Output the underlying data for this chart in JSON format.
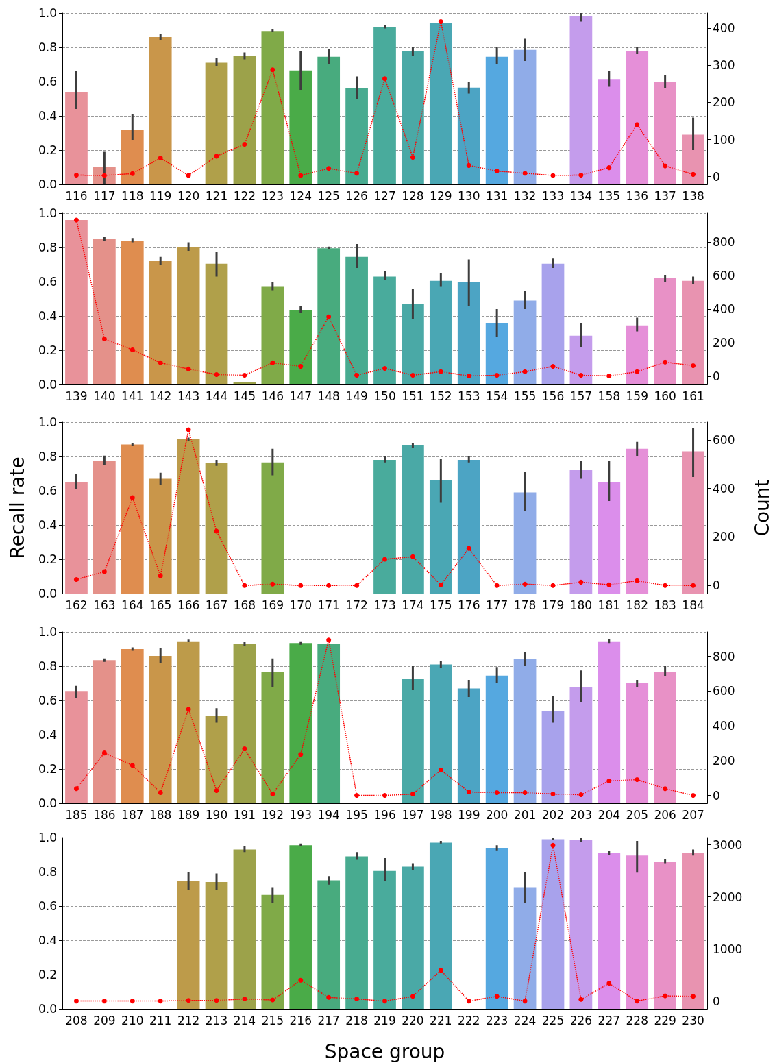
{
  "chart_data": [
    {
      "type": "bar",
      "categories": [
        "116",
        "117",
        "118",
        "119",
        "120",
        "121",
        "122",
        "123",
        "124",
        "125",
        "126",
        "127",
        "128",
        "129",
        "130",
        "131",
        "132",
        "133",
        "134",
        "135",
        "136",
        "137",
        "138"
      ],
      "ylim": [
        0,
        1
      ],
      "yticks": [
        {
          "value": 0,
          "label": "0.0"
        },
        {
          "value": 0.2,
          "label": "0.2"
        },
        {
          "value": 0.4,
          "label": "0.4"
        },
        {
          "value": 0.6,
          "label": "0.6"
        },
        {
          "value": 0.8,
          "label": "0.8"
        },
        {
          "value": 1,
          "label": "1.0"
        }
      ],
      "y2lim": [
        -21,
        441
      ],
      "y2ticks": [
        0,
        100,
        200,
        300,
        400
      ],
      "grid": "y",
      "marker": "circle",
      "line_style": "dotted",
      "series": [
        {
          "colors": [
            "#e8929a",
            "#e4918a",
            "#df8d4f",
            "#c9964a",
            null,
            "#b0a04a",
            "#9ca24a",
            "#80aa48",
            "#4aab48",
            "#48ab7e",
            "#48ab90",
            "#49ab9c",
            "#4aa9a6",
            "#4aa7b4",
            "#4ca4c4",
            "#55a8e0",
            "#90ace8",
            null,
            "#c49cec",
            "#db8eeb",
            "#e58fd8",
            "#e891c6",
            "#e893b0"
          ],
          "values": [
            0.54,
            0.1,
            0.32,
            0.86,
            null,
            0.71,
            0.75,
            0.895,
            0.665,
            0.745,
            0.56,
            0.92,
            0.78,
            0.94,
            0.565,
            0.745,
            0.785,
            null,
            0.98,
            0.615,
            0.78,
            0.6,
            0.29
          ],
          "errors": [
            [
              0.44,
              0.66
            ],
            [
              0,
              0.19
            ],
            [
              0.26,
              0.41
            ],
            [
              0.84,
              0.88
            ],
            null,
            [
              0.69,
              0.74
            ],
            [
              0.73,
              0.77
            ],
            [
              0.89,
              0.905
            ],
            [
              0.55,
              0.78
            ],
            [
              0.7,
              0.79
            ],
            [
              0.5,
              0.63
            ],
            [
              0.91,
              0.93
            ],
            [
              0.75,
              0.8
            ],
            null,
            [
              0.53,
              0.6
            ],
            [
              0.7,
              0.8
            ],
            [
              0.72,
              0.85
            ],
            null,
            [
              0.95,
              1
            ],
            [
              0.57,
              0.66
            ],
            [
              0.76,
              0.8
            ],
            [
              0.56,
              0.64
            ],
            [
              0.2,
              0.39
            ]
          ]
        },
        {
          "type": "line",
          "axis": "y2",
          "color": "#ff0000",
          "values": [
            4,
            3,
            8,
            50,
            3,
            55,
            87,
            288,
            3,
            22,
            9,
            264,
            52,
            418,
            30,
            15,
            9,
            3,
            4,
            24,
            140,
            29,
            6
          ]
        }
      ]
    },
    {
      "type": "bar",
      "categories": [
        "139",
        "140",
        "141",
        "142",
        "143",
        "144",
        "145",
        "146",
        "147",
        "148",
        "149",
        "150",
        "151",
        "152",
        "153",
        "154",
        "155",
        "156",
        "157",
        "158",
        "159",
        "160",
        "161"
      ],
      "ylim": [
        0,
        1
      ],
      "yticks": [
        {
          "value": 0,
          "label": "0.0"
        },
        {
          "value": 0.2,
          "label": "0.2"
        },
        {
          "value": 0.4,
          "label": "0.4"
        },
        {
          "value": 0.6,
          "label": "0.6"
        },
        {
          "value": 0.8,
          "label": "0.8"
        },
        {
          "value": 1,
          "label": "1.0"
        }
      ],
      "y2lim": [
        -47,
        971
      ],
      "y2ticks": [
        0,
        200,
        400,
        600,
        800
      ],
      "grid": "y",
      "marker": "circle",
      "line_style": "dotted",
      "series": [
        {
          "colors": [
            "#e8929a",
            "#e4918a",
            "#df8d4f",
            "#c9964a",
            "#bd9b4a",
            "#b0a04a",
            "#9ca24a",
            "#80aa48",
            "#4aab48",
            "#48ab7e",
            "#48ab90",
            "#49ab9c",
            "#4aa9a6",
            "#4aa7b4",
            "#4ca4c4",
            "#55a8e0",
            "#90ace8",
            "#a8a2ec",
            "#c49cec",
            null,
            "#e58fd8",
            "#e891c6",
            "#e893b0"
          ],
          "values": [
            0.96,
            0.85,
            0.84,
            0.72,
            0.8,
            0.705,
            0.015,
            0.57,
            0.435,
            0.795,
            0.745,
            0.63,
            0.47,
            0.605,
            0.6,
            0.36,
            0.49,
            0.705,
            0.285,
            null,
            0.345,
            0.62,
            0.605
          ],
          "errors": [
            null,
            [
              0.84,
              0.86
            ],
            [
              0.83,
              0.855
            ],
            [
              0.7,
              0.745
            ],
            [
              0.78,
              0.83
            ],
            [
              0.63,
              0.775
            ],
            null,
            [
              0.55,
              0.6
            ],
            [
              0.42,
              0.46
            ],
            [
              0.79,
              0.805
            ],
            [
              0.68,
              0.82
            ],
            [
              0.61,
              0.66
            ],
            [
              0.38,
              0.56
            ],
            [
              0.57,
              0.65
            ],
            [
              0.46,
              0.73
            ],
            [
              0.28,
              0.44
            ],
            [
              0.44,
              0.545
            ],
            [
              0.68,
              0.735
            ],
            [
              0.22,
              0.36
            ],
            null,
            [
              0.31,
              0.39
            ],
            [
              0.6,
              0.64
            ],
            [
              0.585,
              0.63
            ]
          ]
        },
        {
          "type": "line",
          "axis": "y2",
          "color": "#ff0000",
          "values": [
            930,
            224,
            159,
            82,
            45,
            12,
            8,
            82,
            61,
            355,
            8,
            49,
            8,
            29,
            4,
            8,
            29,
            61,
            8,
            4,
            29,
            86,
            65
          ]
        }
      ]
    },
    {
      "type": "bar",
      "categories": [
        "162",
        "163",
        "164",
        "165",
        "166",
        "167",
        "168",
        "169",
        "170",
        "171",
        "172",
        "173",
        "174",
        "175",
        "176",
        "177",
        "178",
        "179",
        "180",
        "181",
        "182",
        "183",
        "184"
      ],
      "ylabel": "Recall rate",
      "y2label": "Count",
      "ylim": [
        0,
        1
      ],
      "yticks": [
        {
          "value": 0,
          "label": "0.0"
        },
        {
          "value": 0.2,
          "label": "0.2"
        },
        {
          "value": 0.4,
          "label": "0.4"
        },
        {
          "value": 0.6,
          "label": "0.6"
        },
        {
          "value": 0.8,
          "label": "0.8"
        },
        {
          "value": 1,
          "label": "1.0"
        }
      ],
      "y2lim": [
        -33,
        673
      ],
      "y2ticks": [
        0,
        200,
        400,
        600
      ],
      "grid": "y",
      "marker": "circle",
      "line_style": "dotted",
      "series": [
        {
          "colors": [
            "#e8929a",
            "#e4918a",
            "#df8d4f",
            "#c9964a",
            "#bd9b4a",
            "#b0a04a",
            null,
            "#80aa48",
            null,
            null,
            null,
            "#49ab9c",
            "#4aa9a6",
            "#4aa7b4",
            "#4ca4c4",
            null,
            "#90ace8",
            null,
            "#c49cec",
            "#db8eeb",
            "#e58fd8",
            null,
            "#e893b0"
          ],
          "values": [
            0.65,
            0.775,
            0.87,
            0.67,
            0.9,
            0.76,
            null,
            0.765,
            null,
            null,
            null,
            0.78,
            0.865,
            0.66,
            0.78,
            null,
            0.59,
            null,
            0.72,
            0.65,
            0.845,
            null,
            0.83
          ],
          "errors": [
            [
              0.61,
              0.7
            ],
            [
              0.75,
              0.805
            ],
            [
              0.86,
              0.88
            ],
            [
              0.635,
              0.705
            ],
            [
              0.89,
              0.91
            ],
            [
              0.745,
              0.78
            ],
            null,
            [
              0.69,
              0.845
            ],
            null,
            null,
            null,
            [
              0.765,
              0.8
            ],
            [
              0.85,
              0.88
            ],
            [
              0.53,
              0.785
            ],
            [
              0.765,
              0.8
            ],
            null,
            [
              0.48,
              0.71
            ],
            null,
            [
              0.67,
              0.775
            ],
            [
              0.54,
              0.775
            ],
            [
              0.8,
              0.885
            ],
            null,
            [
              0.68,
              0.965
            ]
          ]
        },
        {
          "type": "line",
          "axis": "y2",
          "color": "#ff0000",
          "values": [
            25,
            57,
            362,
            40,
            642,
            224,
            0,
            6,
            0,
            0,
            0,
            108,
            119,
            3,
            153,
            0,
            6,
            0,
            14,
            3,
            20,
            0,
            0
          ]
        }
      ]
    },
    {
      "type": "bar",
      "categories": [
        "185",
        "186",
        "187",
        "188",
        "189",
        "190",
        "191",
        "192",
        "193",
        "194",
        "195",
        "196",
        "197",
        "198",
        "199",
        "200",
        "201",
        "202",
        "203",
        "204",
        "205",
        "206",
        "207"
      ],
      "ylim": [
        0,
        1
      ],
      "yticks": [
        {
          "value": 0,
          "label": "0.0"
        },
        {
          "value": 0.2,
          "label": "0.2"
        },
        {
          "value": 0.4,
          "label": "0.4"
        },
        {
          "value": 0.6,
          "label": "0.6"
        },
        {
          "value": 0.8,
          "label": "0.8"
        },
        {
          "value": 1,
          "label": "1.0"
        }
      ],
      "y2lim": [
        -45,
        940
      ],
      "y2ticks": [
        0,
        200,
        400,
        600,
        800
      ],
      "grid": "y",
      "marker": "circle",
      "line_style": "dotted",
      "series": [
        {
          "colors": [
            "#e8929a",
            "#e4918a",
            "#df8d4f",
            "#c9964a",
            "#bd9b4a",
            "#b0a04a",
            "#9ca24a",
            "#80aa48",
            "#4aab48",
            "#48ab7e",
            null,
            null,
            "#4aa9a6",
            "#4aa7b4",
            "#4ca4c4",
            "#55a8e0",
            "#90ace8",
            "#a8a2ec",
            "#c49cec",
            "#db8eeb",
            "#e58fd8",
            "#e891c6",
            null
          ],
          "values": [
            0.655,
            0.835,
            0.9,
            0.86,
            0.945,
            0.51,
            0.93,
            0.765,
            0.935,
            0.93,
            null,
            null,
            0.725,
            0.81,
            0.67,
            0.745,
            0.84,
            0.54,
            0.68,
            0.945,
            0.7,
            0.765,
            null
          ],
          "errors": [
            [
              0.615,
              0.685
            ],
            [
              0.825,
              0.845
            ],
            [
              0.89,
              0.91
            ],
            [
              0.82,
              0.905
            ],
            [
              0.94,
              0.955
            ],
            [
              0.47,
              0.555
            ],
            [
              0.92,
              0.94
            ],
            [
              0.68,
              0.845
            ],
            [
              0.925,
              0.945
            ],
            null,
            null,
            null,
            [
              0.66,
              0.8
            ],
            [
              0.79,
              0.83
            ],
            [
              0.62,
              0.72
            ],
            [
              0.7,
              0.795
            ],
            [
              0.8,
              0.88
            ],
            [
              0.47,
              0.625
            ],
            [
              0.59,
              0.775
            ],
            [
              0.935,
              0.96
            ],
            [
              0.68,
              0.72
            ],
            [
              0.74,
              0.8
            ],
            null
          ]
        },
        {
          "type": "line",
          "axis": "y2",
          "color": "#ff0000",
          "values": [
            39,
            244,
            173,
            16,
            496,
            28,
            268,
            8,
            236,
            894,
            0,
            0,
            8,
            146,
            20,
            16,
            16,
            8,
            4,
            83,
            91,
            39,
            0
          ]
        }
      ]
    },
    {
      "type": "bar",
      "categories": [
        "208",
        "209",
        "210",
        "211",
        "212",
        "213",
        "214",
        "215",
        "216",
        "217",
        "218",
        "219",
        "220",
        "221",
        "222",
        "223",
        "224",
        "225",
        "226",
        "227",
        "228",
        "229",
        "230"
      ],
      "xlabel": "Space group",
      "ylim": [
        0,
        1
      ],
      "yticks": [
        {
          "value": 0,
          "label": "0.0"
        },
        {
          "value": 0.2,
          "label": "0.2"
        },
        {
          "value": 0.4,
          "label": "0.4"
        },
        {
          "value": 0.6,
          "label": "0.6"
        },
        {
          "value": 0.8,
          "label": "0.8"
        },
        {
          "value": 1,
          "label": "1.0"
        }
      ],
      "y2lim": [
        -150,
        3140
      ],
      "y2ticks": [
        0,
        1000,
        2000,
        3000
      ],
      "grid": "y",
      "marker": "circle",
      "line_style": "dotted",
      "series": [
        {
          "colors": [
            null,
            null,
            null,
            null,
            "#bd9b4a",
            "#b0a04a",
            "#9ca24a",
            "#80aa48",
            "#4aab48",
            "#48ab7e",
            "#48ab90",
            "#49ab9c",
            "#4aa9a6",
            "#4aa7b4",
            null,
            "#55a8e0",
            "#90ace8",
            "#a8a2ec",
            "#c49cec",
            "#db8eeb",
            "#e58fd8",
            "#e891c6",
            "#e893b0"
          ],
          "values": [
            null,
            null,
            null,
            null,
            0.745,
            0.74,
            0.93,
            0.665,
            0.955,
            0.75,
            0.89,
            0.805,
            0.83,
            0.97,
            null,
            0.94,
            0.71,
            0.99,
            0.985,
            0.91,
            0.895,
            0.86,
            0.91
          ],
          "errors": [
            null,
            null,
            null,
            null,
            [
              0.695,
              0.8
            ],
            [
              0.695,
              0.79
            ],
            [
              0.915,
              0.95
            ],
            [
              0.62,
              0.71
            ],
            [
              0.95,
              0.965
            ],
            [
              0.725,
              0.775
            ],
            [
              0.87,
              0.915
            ],
            [
              0.745,
              0.88
            ],
            [
              0.81,
              0.85
            ],
            [
              0.965,
              0.98
            ],
            null,
            [
              0.925,
              0.955
            ],
            [
              0.62,
              0.8
            ],
            [
              0.985,
              1
            ],
            [
              0.975,
              1
            ],
            [
              0.9,
              0.92
            ],
            [
              0.795,
              0.98
            ],
            [
              0.85,
              0.875
            ],
            [
              0.895,
              0.93
            ]
          ]
        },
        {
          "type": "line",
          "axis": "y2",
          "color": "#ff0000",
          "values": [
            0,
            0,
            0,
            0,
            10,
            10,
            40,
            20,
            400,
            70,
            40,
            0,
            90,
            590,
            0,
            90,
            0,
            2990,
            30,
            340,
            0,
            100,
            90
          ]
        }
      ]
    }
  ]
}
